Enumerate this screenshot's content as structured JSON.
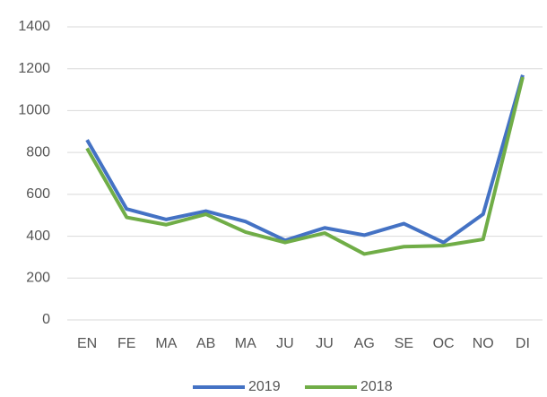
{
  "chart_data": {
    "type": "line",
    "categories": [
      "EN",
      "FE",
      "MA",
      "AB",
      "MA",
      "JU",
      "JU",
      "AG",
      "SE",
      "OC",
      "NO",
      "DI"
    ],
    "series": [
      {
        "name": "2019",
        "color": "#4472c4",
        "values": [
          860,
          530,
          480,
          520,
          470,
          380,
          440,
          405,
          460,
          370,
          505,
          1170
        ]
      },
      {
        "name": "2018",
        "color": "#70ad47",
        "values": [
          820,
          490,
          455,
          505,
          420,
          370,
          415,
          315,
          350,
          355,
          385,
          1160
        ]
      }
    ],
    "ylim": [
      0,
      1400
    ],
    "yticks": [
      0,
      200,
      400,
      600,
      800,
      1000,
      1200,
      1400
    ],
    "grid": true,
    "legend": "bottom"
  }
}
